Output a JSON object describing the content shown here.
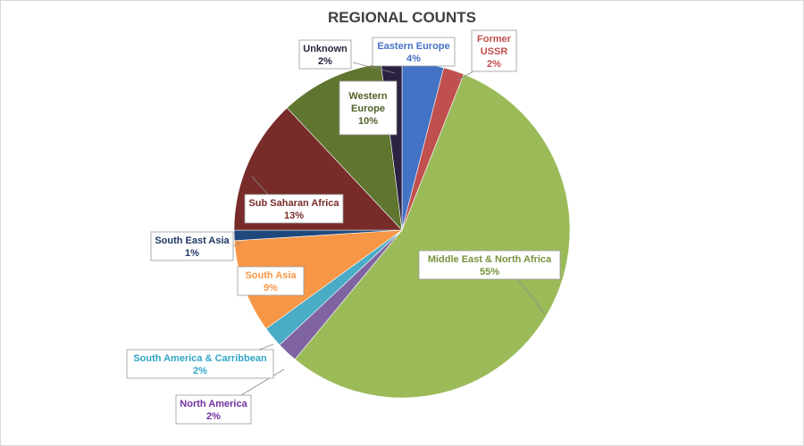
{
  "chart_data": {
    "type": "pie",
    "title": "REGIONAL COUNTS",
    "slices": [
      {
        "label": "Eastern Europe",
        "value": 4,
        "percent_label": "4%",
        "color": "#4472c4",
        "label_color": "#4472c4"
      },
      {
        "label": "Former USSR",
        "value": 2,
        "percent_label": "2%",
        "color": "#c0504d",
        "label_color": "#c0504d"
      },
      {
        "label": "Middle East & North Africa",
        "value": 55,
        "percent_label": "55%",
        "color": "#9bbb59",
        "label_color": "#76923c"
      },
      {
        "label": "North America",
        "value": 2,
        "percent_label": "2%",
        "color": "#8064a2",
        "label_color": "#7030a0"
      },
      {
        "label": "South America & Carribbean",
        "value": 2,
        "percent_label": "2%",
        "color": "#4bacc6",
        "label_color": "#31a5c6"
      },
      {
        "label": "South Asia",
        "value": 9,
        "percent_label": "9%",
        "color": "#f79646",
        "label_color": "#f79646"
      },
      {
        "label": "South East Asia",
        "value": 1,
        "percent_label": "1%",
        "color": "#1f497d",
        "label_color": "#1f3864"
      },
      {
        "label": "Sub Saharan Africa",
        "value": 13,
        "percent_label": "13%",
        "color": "#772c2a",
        "label_color": "#772c2a"
      },
      {
        "label": "Western Europe",
        "value": 10,
        "percent_label": "10%",
        "color": "#5f7530",
        "label_color": "#4f6228"
      },
      {
        "label": "Unknown",
        "value": 2,
        "percent_label": "2%",
        "color": "#2c2140",
        "label_color": "#2c2140"
      }
    ]
  }
}
